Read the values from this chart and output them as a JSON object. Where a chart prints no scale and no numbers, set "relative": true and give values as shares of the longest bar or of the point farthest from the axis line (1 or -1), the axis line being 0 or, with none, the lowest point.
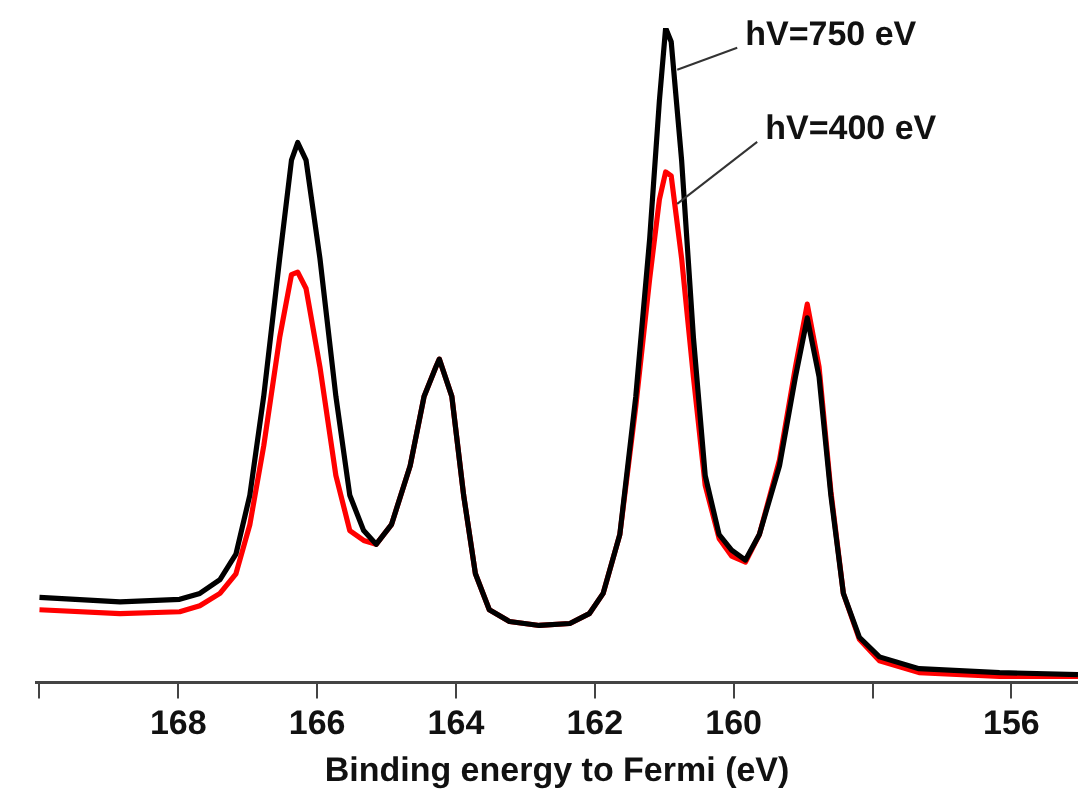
{
  "chart_data": {
    "type": "line",
    "relative": true,
    "xlabel": "Binding energy to Fermi (eV)",
    "legend": false,
    "x": [
      170.0,
      168.84,
      167.98,
      167.69,
      167.4,
      167.17,
      166.97,
      166.77,
      166.54,
      166.37,
      166.28,
      166.16,
      165.96,
      165.73,
      165.53,
      165.33,
      165.15,
      164.93,
      164.66,
      164.46,
      164.29,
      164.24,
      164.06,
      163.89,
      163.72,
      163.52,
      163.23,
      162.8,
      162.36,
      162.08,
      161.88,
      161.64,
      161.41,
      161.21,
      161.07,
      160.98,
      160.9,
      160.75,
      160.58,
      160.41,
      160.21,
      160.03,
      159.83,
      159.63,
      159.34,
      159.11,
      158.94,
      158.77,
      158.6,
      158.42,
      158.19,
      157.9,
      157.33,
      156.17,
      155.04
    ],
    "xlim": [
      170.05,
      155.04
    ],
    "xticks": [
      {
        "value": 170,
        "label": null
      },
      168,
      166,
      164,
      162,
      160,
      {
        "value": 158,
        "label": null
      },
      156
    ],
    "series": [
      {
        "name": "hV=750 eV",
        "color": "#000000",
        "values": [
          0.13,
          0.123,
          0.127,
          0.136,
          0.157,
          0.196,
          0.286,
          0.437,
          0.648,
          0.798,
          0.825,
          0.798,
          0.648,
          0.437,
          0.286,
          0.232,
          0.211,
          0.241,
          0.331,
          0.437,
          0.482,
          0.494,
          0.437,
          0.286,
          0.166,
          0.111,
          0.093,
          0.087,
          0.09,
          0.105,
          0.136,
          0.226,
          0.437,
          0.678,
          0.889,
          1.0,
          0.979,
          0.798,
          0.527,
          0.316,
          0.226,
          0.202,
          0.187,
          0.226,
          0.331,
          0.467,
          0.557,
          0.467,
          0.286,
          0.136,
          0.069,
          0.039,
          0.021,
          0.015,
          0.012
        ]
      },
      {
        "name": "hV=400 eV",
        "color": "#ff0000",
        "values": [
          0.111,
          0.105,
          0.108,
          0.117,
          0.136,
          0.166,
          0.241,
          0.361,
          0.527,
          0.623,
          0.627,
          0.602,
          0.482,
          0.316,
          0.232,
          0.217,
          0.211,
          0.241,
          0.331,
          0.437,
          0.482,
          0.494,
          0.437,
          0.286,
          0.166,
          0.111,
          0.093,
          0.087,
          0.09,
          0.105,
          0.136,
          0.226,
          0.422,
          0.617,
          0.738,
          0.78,
          0.774,
          0.648,
          0.467,
          0.301,
          0.22,
          0.193,
          0.184,
          0.226,
          0.34,
          0.482,
          0.578,
          0.482,
          0.292,
          0.136,
          0.066,
          0.033,
          0.015,
          0.009,
          0.009
        ]
      }
    ]
  }
}
